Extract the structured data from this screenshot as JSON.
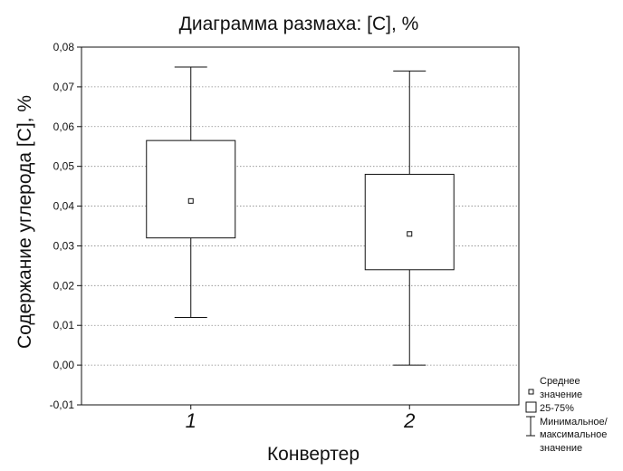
{
  "chart_data": {
    "type": "boxplot",
    "title": "Диаграмма размаха: [C], %",
    "xlabel": "Конвертер",
    "ylabel": "Содержание углерода [C], %",
    "ylim": [
      -0.01,
      0.08
    ],
    "yticks": [
      -0.01,
      0.0,
      0.01,
      0.02,
      0.03,
      0.04,
      0.05,
      0.06,
      0.07,
      0.08
    ],
    "ytick_labels": [
      "-0,01",
      "0,00",
      "0,01",
      "0,02",
      "0,03",
      "0,04",
      "0,05",
      "0,06",
      "0,07",
      "0,08"
    ],
    "grid": true,
    "categories": [
      "1",
      "2"
    ],
    "boxes": [
      {
        "category": "1",
        "min": 0.012,
        "q1": 0.032,
        "mean": 0.0413,
        "q3": 0.0565,
        "max": 0.075
      },
      {
        "category": "2",
        "min": 0.0,
        "q1": 0.024,
        "mean": 0.033,
        "q3": 0.048,
        "max": 0.074
      }
    ],
    "legend": {
      "placement": "bottom-right",
      "mean_lines": [
        "Среднее",
        "значение"
      ],
      "box_lines": [
        "25-75%"
      ],
      "range_lines": [
        "Минимальное/",
        "максимальное",
        "значение"
      ]
    }
  }
}
